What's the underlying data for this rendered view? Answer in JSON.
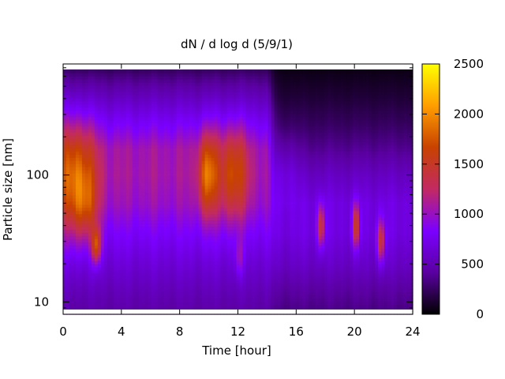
{
  "chart_data": {
    "type": "heatmap",
    "title": "dN / d log d (5/9/1)",
    "xlabel": "Time [hour]",
    "ylabel": "Particle size [nm]",
    "x_range": [
      0,
      24
    ],
    "x_ticks": [
      0,
      4,
      8,
      12,
      16,
      20,
      24
    ],
    "x_tick_labels": [
      "0",
      "4",
      "8",
      "12",
      "16",
      "20",
      "24"
    ],
    "y_scale": "log",
    "y_range": [
      8,
      750
    ],
    "y_ticks": [
      10,
      100
    ],
    "y_tick_labels": [
      "10",
      "100"
    ],
    "colorbar": {
      "range": [
        0,
        2500
      ],
      "ticks": [
        0,
        500,
        1000,
        1500,
        2000,
        2500
      ],
      "tick_labels": [
        "0",
        "500",
        "1000",
        "1500",
        "2000",
        "2500"
      ],
      "colormap": [
        "#000000",
        "#5a00a0",
        "#7b00ff",
        "#c22a62",
        "#c84200",
        "#ff9e00",
        "#ffff00"
      ]
    },
    "blobs": [
      {
        "t": 0.9,
        "d": 95,
        "st": 0.95,
        "sd": 0.3,
        "v": 820
      },
      {
        "t": 2.3,
        "d": 28,
        "st": 0.22,
        "sd": 0.1,
        "v": 900
      },
      {
        "t": 1.5,
        "d": 55,
        "st": 0.6,
        "sd": 0.18,
        "v": 380
      },
      {
        "t": 9.9,
        "d": 100,
        "st": 0.45,
        "sd": 0.22,
        "v": 800
      },
      {
        "t": 11.6,
        "d": 100,
        "st": 0.75,
        "sd": 0.24,
        "v": 650
      },
      {
        "t": 12.1,
        "d": 22,
        "st": 0.2,
        "sd": 0.1,
        "v": 300
      },
      {
        "t": 15.3,
        "d": 110,
        "st": 0.6,
        "sd": 0.2,
        "v": 150
      },
      {
        "t": 17.7,
        "d": 40,
        "st": 0.18,
        "sd": 0.12,
        "v": 800
      },
      {
        "t": 20.1,
        "d": 40,
        "st": 0.18,
        "sd": 0.12,
        "v": 820
      },
      {
        "t": 21.8,
        "d": 30,
        "st": 0.2,
        "sd": 0.12,
        "v": 750
      }
    ],
    "base_profile_day": [
      {
        "d": 8,
        "v": 430
      },
      {
        "d": 12,
        "v": 520
      },
      {
        "d": 20,
        "v": 650
      },
      {
        "d": 35,
        "v": 820
      },
      {
        "d": 60,
        "v": 1000
      },
      {
        "d": 100,
        "v": 1070
      },
      {
        "d": 160,
        "v": 1050
      },
      {
        "d": 250,
        "v": 820
      },
      {
        "d": 400,
        "v": 560
      },
      {
        "d": 600,
        "v": 330
      },
      {
        "d": 750,
        "v": 180
      }
    ],
    "base_profile_night": [
      {
        "d": 8,
        "v": 330
      },
      {
        "d": 12,
        "v": 420
      },
      {
        "d": 20,
        "v": 580
      },
      {
        "d": 35,
        "v": 700
      },
      {
        "d": 60,
        "v": 700
      },
      {
        "d": 100,
        "v": 560
      },
      {
        "d": 160,
        "v": 380
      },
      {
        "d": 250,
        "v": 250
      },
      {
        "d": 400,
        "v": 150
      },
      {
        "d": 600,
        "v": 80
      },
      {
        "d": 750,
        "v": 30
      }
    ],
    "night_start_hour": 14.3
  }
}
